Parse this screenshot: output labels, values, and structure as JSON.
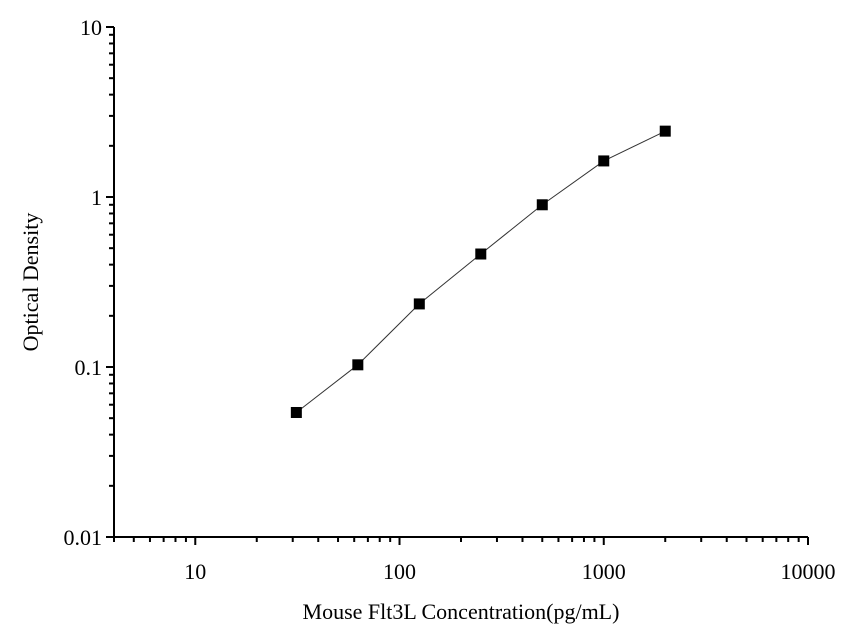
{
  "chart_data": {
    "type": "line",
    "xlabel": "Mouse Flt3L Concentration(pg/mL)",
    "ylabel": "Optical Density",
    "xscale": "log",
    "yscale": "log",
    "xlim": [
      4,
      10000
    ],
    "ylim": [
      0.01,
      10
    ],
    "x_ticks": [
      "10",
      "100",
      "1000",
      "10000"
    ],
    "y_ticks": [
      "0.01",
      "0.1",
      "1",
      "10"
    ],
    "grid": false,
    "marker": "square",
    "color": "#000000",
    "series": [
      {
        "x": [
          31.25,
          62.5,
          125,
          250,
          500,
          1000,
          2000
        ],
        "y": [
          0.054,
          0.103,
          0.235,
          0.462,
          0.9,
          1.63,
          2.44
        ]
      }
    ]
  }
}
